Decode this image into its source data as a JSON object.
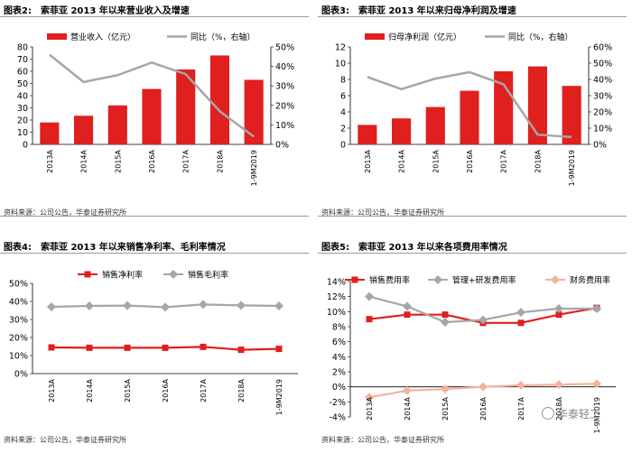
{
  "colors": {
    "red": "#e01f1f",
    "gray": "#a6a6a6",
    "salmon": "#f4b29c"
  },
  "source_text": "资料来源：公司公告，华泰证券研究所",
  "watermark": "华泰轻工",
  "chart_data": [
    {
      "type": "bar+line",
      "fig_label": "图表2:",
      "title": "索菲亚 2013 年以来营业收入及增速",
      "categories": [
        "2013A",
        "2014A",
        "2015A",
        "2016A",
        "2017A",
        "2018A",
        "1-9M2019"
      ],
      "series": [
        {
          "name": "营业收入（亿元）",
          "kind": "bar",
          "axis": "left",
          "values": [
            18,
            23.5,
            32,
            45.5,
            61.5,
            73,
            53
          ]
        },
        {
          "name": "同比（%，右轴）",
          "kind": "line",
          "axis": "right",
          "values": [
            0.46,
            0.32,
            0.355,
            0.42,
            0.36,
            0.17,
            0.04
          ]
        }
      ],
      "left_ticks": [
        0,
        10,
        20,
        30,
        40,
        50,
        60,
        70,
        80
      ],
      "right_ticks": [
        "0%",
        "10%",
        "20%",
        "30%",
        "40%",
        "50%"
      ],
      "ylim": [
        0,
        80
      ],
      "y2lim": [
        0,
        0.5
      ]
    },
    {
      "type": "bar+line",
      "fig_label": "图表3:",
      "title": "索菲亚 2013 年以来归母净利润及增速",
      "categories": [
        "2013A",
        "2014A",
        "2015A",
        "2016A",
        "2017A",
        "2018A",
        "1-9M2019"
      ],
      "series": [
        {
          "name": "归母净利润（亿元）",
          "kind": "bar",
          "axis": "left",
          "values": [
            2.4,
            3.2,
            4.6,
            6.6,
            9.0,
            9.6,
            7.2
          ]
        },
        {
          "name": "同比（%，右轴）",
          "kind": "line",
          "axis": "right",
          "values": [
            0.415,
            0.34,
            0.405,
            0.445,
            0.37,
            0.06,
            0.045
          ]
        }
      ],
      "left_ticks": [
        0,
        2,
        4,
        6,
        8,
        10,
        12
      ],
      "right_ticks": [
        "0%",
        "10%",
        "20%",
        "30%",
        "40%",
        "50%",
        "60%"
      ],
      "ylim": [
        0,
        12
      ],
      "y2lim": [
        0,
        0.6
      ]
    },
    {
      "type": "line",
      "fig_label": "图表4:",
      "title": "索菲亚 2013 年以来销售净利率、毛利率情况",
      "categories": [
        "2013A",
        "2014A",
        "2015A",
        "2016A",
        "2017A",
        "2018A",
        "1-9M2019"
      ],
      "series": [
        {
          "name": "销售净利率",
          "values": [
            0.145,
            0.143,
            0.143,
            0.143,
            0.148,
            0.132,
            0.137
          ]
        },
        {
          "name": "销售毛利率",
          "values": [
            0.37,
            0.375,
            0.377,
            0.368,
            0.383,
            0.378,
            0.375
          ]
        }
      ],
      "y_ticks": [
        "0%",
        "10%",
        "20%",
        "30%",
        "40%",
        "50%"
      ],
      "ylim": [
        0,
        0.5
      ]
    },
    {
      "type": "line",
      "fig_label": "图表5:",
      "title": "索菲亚 2013 年以来各项费用率情况",
      "categories": [
        "2013A",
        "2014A",
        "2015A",
        "2016A",
        "2017A",
        "2018A",
        "1-9M2019"
      ],
      "series": [
        {
          "name": "销售费用率",
          "values": [
            0.09,
            0.096,
            0.096,
            0.085,
            0.085,
            0.096,
            0.105
          ]
        },
        {
          "name": "管理+研发费用率",
          "values": [
            0.12,
            0.107,
            0.086,
            0.089,
            0.099,
            0.104,
            0.104
          ]
        },
        {
          "name": "财务费用率",
          "values": [
            -0.014,
            -0.005,
            -0.003,
            0,
            0.002,
            0.003,
            0.004
          ]
        }
      ],
      "y_ticks": [
        "-4%",
        "-2%",
        "0%",
        "2%",
        "4%",
        "6%",
        "8%",
        "10%",
        "12%",
        "14%"
      ],
      "ylim": [
        -0.04,
        0.14
      ]
    }
  ]
}
